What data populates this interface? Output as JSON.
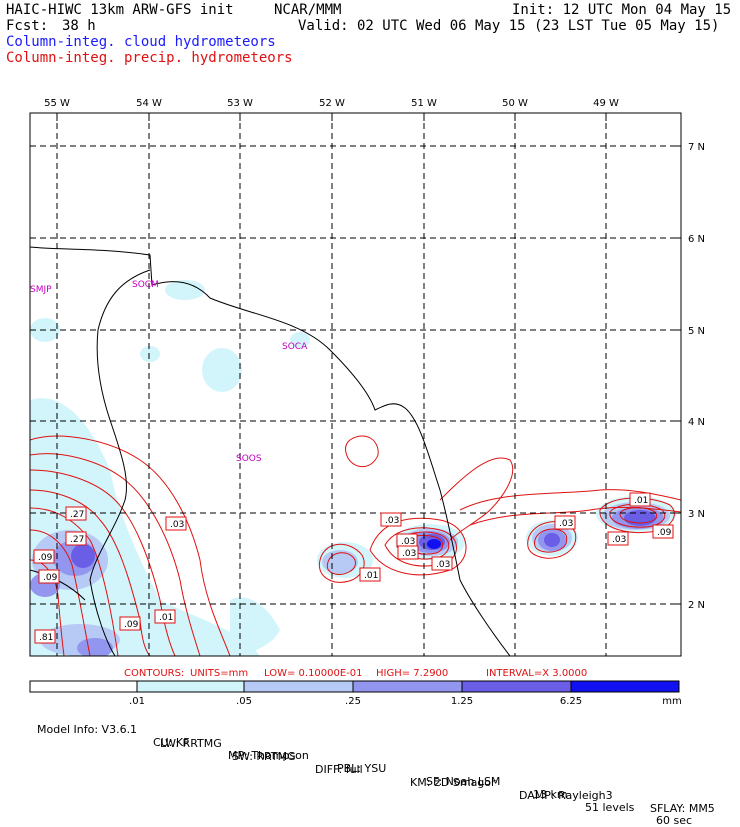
{
  "header": {
    "model_title": "HAIC-HIWC 13km ARW-GFS init",
    "org": "NCAR/MMM",
    "init": "Init: 12 UTC Mon 04 May 15",
    "fcst_label": "Fcst:",
    "fcst_value": "38 h",
    "valid": "Valid: 02 UTC Wed 06 May 15 (23 LST Tue 05 May 15)",
    "field1": "Column-integ. cloud hydrometeors",
    "field2": "Column-integ. precip. hydrometeors"
  },
  "map": {
    "lon_labels": [
      "55 W",
      "54 W",
      "53 W",
      "52 W",
      "51 W",
      "50 W",
      "49 W"
    ],
    "lat_labels": [
      "7 N",
      "6 N",
      "5 N",
      "4 N",
      "3 N",
      "2 N"
    ],
    "stations": [
      "SMJP",
      "SOCM",
      "SOCA",
      "SOOS"
    ],
    "contour_labels": [
      ".27",
      ".27",
      ".09",
      ".03",
      ".03",
      ".03",
      ".01",
      ".03",
      ".03",
      ".09",
      ".03",
      ".01",
      ".03",
      ".09",
      ".01",
      ".09",
      ".81"
    ]
  },
  "contours_line": {
    "contours": "CONTOURS:",
    "units": "UNITS=mm",
    "low": "LOW= 0.10000E-01",
    "high": "HIGH=  7.2900",
    "interval": "INTERVAL=X  3.0000"
  },
  "colorbar": {
    "ticks": [
      ".01",
      ".05",
      ".25",
      "1.25",
      "6.25"
    ],
    "units": "mm",
    "colors": [
      "#ffffff",
      "#d2f5fb",
      "#b7c9f5",
      "#9396ee",
      "#6a5de6",
      "#3c35ea",
      "#1010f0"
    ]
  },
  "model_info": {
    "line1": [
      "Model Info: V3.6.1",
      "CU: KF",
      "MP: Thompson",
      "PBL: YSU",
      "SF: Noah LSM",
      "13 km",
      "51 levels",
      "60 sec"
    ],
    "line2": [
      "LW: RRTMG",
      "SW: RRTMG",
      "DIFF: full",
      "KM: 2D Smagor",
      "DAMP: Rayleigh3",
      "SFLAY: MM5"
    ]
  }
}
